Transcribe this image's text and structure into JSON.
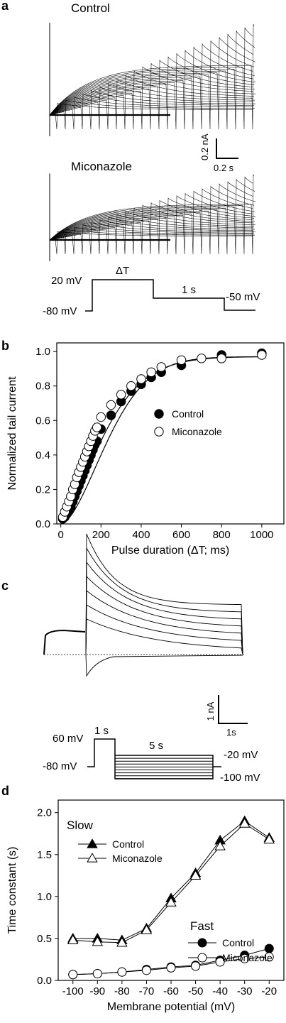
{
  "panels": {
    "a": {
      "letter": "a",
      "trace1_label": "Control",
      "trace2_label": "Miconazole",
      "scalebar_y": "0.2 nA",
      "scalebar_x": "0.2 s",
      "protocol": {
        "v_hold": "-80 mV",
        "v_step": "20 mV",
        "pulse": "ΔT",
        "tail_duration": "1 s",
        "v_tail": "-50 mV"
      }
    },
    "b": {
      "letter": "b"
    },
    "c": {
      "letter": "c",
      "scalebar_y": "1 nA",
      "scalebar_x": "1s",
      "protocol": {
        "v_hold": "-80 mV",
        "v_step": "60 mV",
        "step_duration": "1 s",
        "test_duration": "5 s",
        "v_top": "-20 mV",
        "v_bottom": "-100 mV"
      }
    },
    "d": {
      "letter": "d",
      "group_slow": "Slow",
      "group_fast": "Fast"
    }
  },
  "chart_data": [
    {
      "panel": "b",
      "type": "scatter",
      "xlabel": "Pulse duration (ΔT; ms)",
      "ylabel": "Normalized tail current",
      "xlim": [
        -20,
        1110
      ],
      "ylim": [
        0,
        1.05
      ],
      "xticks": [
        0,
        200,
        400,
        600,
        800,
        1000
      ],
      "yticks": [
        0.0,
        0.2,
        0.4,
        0.6,
        0.8,
        1.0
      ],
      "legend_position": "center-right",
      "series": [
        {
          "name": "Control",
          "marker": "filled-circle",
          "x": [
            10,
            20,
            30,
            40,
            50,
            60,
            70,
            80,
            90,
            100,
            110,
            120,
            130,
            140,
            150,
            160,
            170,
            180,
            200,
            250,
            300,
            350,
            400,
            450,
            500,
            600,
            800,
            1000
          ],
          "y": [
            0.03,
            0.04,
            0.06,
            0.08,
            0.1,
            0.13,
            0.16,
            0.19,
            0.22,
            0.25,
            0.28,
            0.31,
            0.34,
            0.37,
            0.4,
            0.43,
            0.46,
            0.48,
            0.55,
            0.63,
            0.71,
            0.77,
            0.81,
            0.85,
            0.88,
            0.92,
            0.98,
            0.99
          ]
        },
        {
          "name": "Miconazole",
          "marker": "open-circle",
          "x": [
            10,
            20,
            30,
            40,
            50,
            60,
            70,
            80,
            90,
            100,
            110,
            120,
            130,
            140,
            150,
            160,
            170,
            180,
            200,
            250,
            300,
            350,
            400,
            450,
            500,
            600,
            700,
            800,
            1000
          ],
          "y": [
            0.04,
            0.07,
            0.1,
            0.13,
            0.16,
            0.2,
            0.23,
            0.27,
            0.3,
            0.33,
            0.36,
            0.39,
            0.42,
            0.45,
            0.48,
            0.51,
            0.54,
            0.56,
            0.62,
            0.69,
            0.75,
            0.8,
            0.84,
            0.88,
            0.91,
            0.95,
            0.96,
            0.96,
            0.98
          ]
        }
      ]
    },
    {
      "panel": "d",
      "type": "line",
      "xlabel": "Membrane potential (mV)",
      "ylabel": "Time constant (s)",
      "xlim": [
        -106,
        -14
      ],
      "ylim": [
        0,
        2.15
      ],
      "xticks": [
        -100,
        -90,
        -80,
        -70,
        -60,
        -50,
        -40,
        -30,
        -20
      ],
      "yticks": [
        0.0,
        0.5,
        1.0,
        1.5,
        2.0
      ],
      "series": [
        {
          "name": "Control",
          "group": "Slow",
          "marker": "filled-triangle",
          "x": [
            -100,
            -90,
            -80,
            -70,
            -60,
            -50,
            -40,
            -30,
            -20
          ],
          "y": [
            0.5,
            0.5,
            0.48,
            0.62,
            0.98,
            1.28,
            1.67,
            1.9,
            1.7
          ]
        },
        {
          "name": "Miconazole",
          "group": "Slow",
          "marker": "open-triangle",
          "x": [
            -100,
            -90,
            -80,
            -70,
            -60,
            -50,
            -40,
            -30,
            -20
          ],
          "y": [
            0.48,
            0.46,
            0.45,
            0.6,
            0.93,
            1.25,
            1.6,
            1.87,
            1.68
          ]
        },
        {
          "name": "Control",
          "group": "Fast",
          "marker": "filled-circle",
          "x": [
            -100,
            -90,
            -80,
            -70,
            -60,
            -50,
            -40,
            -30,
            -20
          ],
          "y": [
            0.07,
            0.08,
            0.1,
            0.13,
            0.16,
            0.18,
            0.24,
            0.3,
            0.38
          ]
        },
        {
          "name": "Miconazole",
          "group": "Fast",
          "marker": "open-circle",
          "x": [
            -100,
            -90,
            -80,
            -70,
            -60,
            -50,
            -40,
            -30,
            -20
          ],
          "y": [
            0.07,
            0.08,
            0.1,
            0.12,
            0.15,
            0.17,
            0.22,
            0.26,
            0.28
          ]
        }
      ]
    }
  ]
}
